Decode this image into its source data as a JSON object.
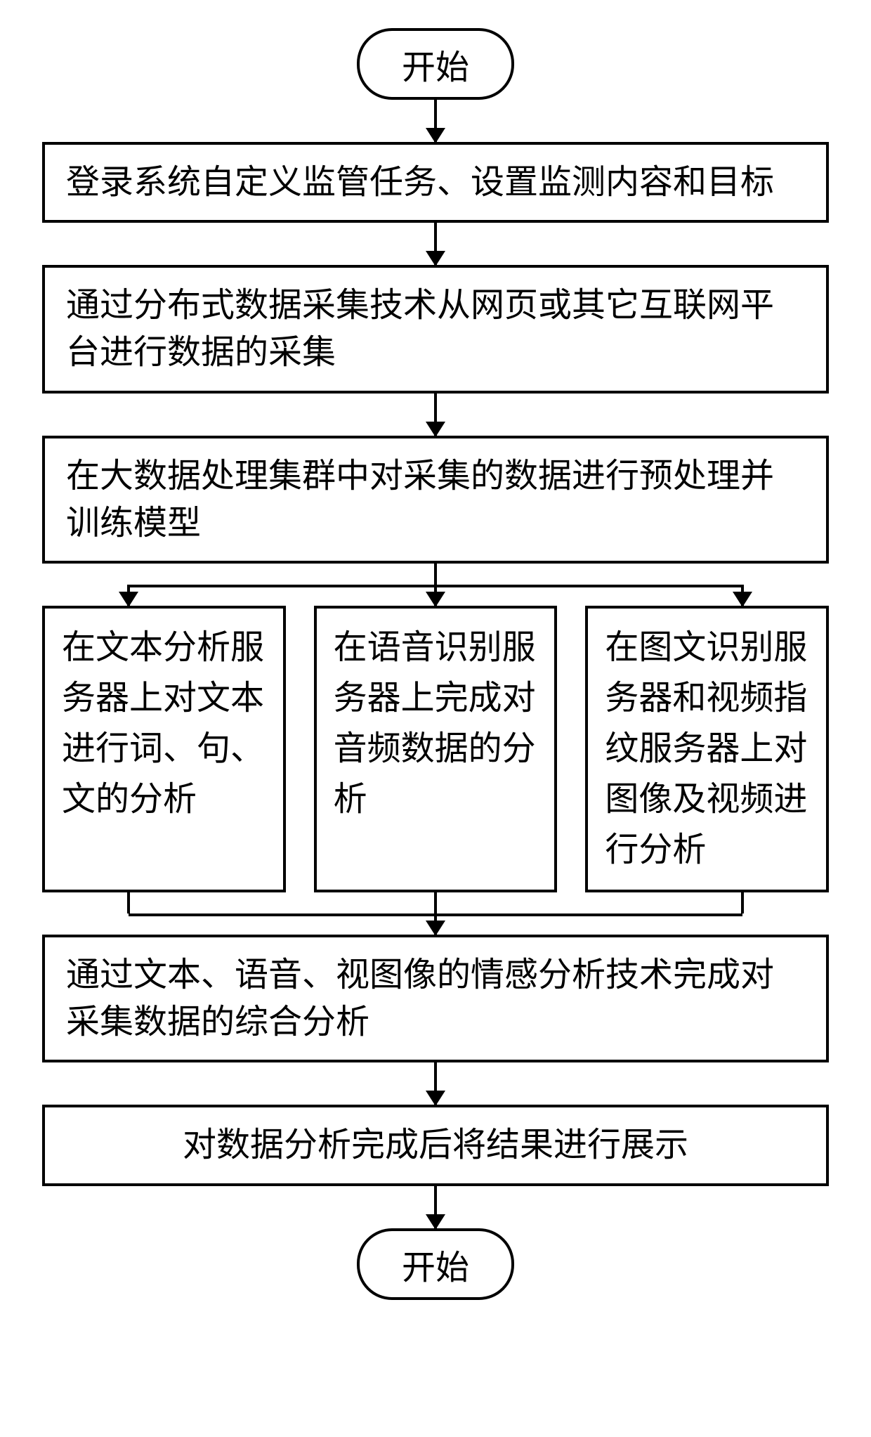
{
  "flowchart": {
    "type": "flowchart",
    "background_color": "#ffffff",
    "border_color": "#000000",
    "border_width": 4,
    "font_family": "SimSun",
    "font_size": 48,
    "text_color": "#000000",
    "arrow_color": "#000000",
    "terminal_radius": 50,
    "nodes": {
      "start": {
        "type": "terminal",
        "label": "开始"
      },
      "step1": {
        "type": "process",
        "label": "登录系统自定义监管任务、设置监测内容和目标"
      },
      "step2": {
        "type": "process",
        "label": "通过分布式数据采集技术从网页或其它互联网平台进行数据的采集"
      },
      "step3": {
        "type": "process",
        "label": "在大数据处理集群中对采集的数据进行预处理并训练模型"
      },
      "branch_left": {
        "type": "process",
        "label": "在文本分析服务器上对文本进行词、句、文的分析"
      },
      "branch_center": {
        "type": "process",
        "label": "在语音识别服务器上完成对音频数据的分析"
      },
      "branch_right": {
        "type": "process",
        "label": "在图文识别服务器和视频指纹服务器上对图像及视频进行分析"
      },
      "step5": {
        "type": "process",
        "label": "通过文本、语音、视图像的情感分析技术完成对采集数据的综合分析"
      },
      "step6": {
        "type": "process",
        "label": "对数据分析完成后将结果进行展示"
      },
      "end": {
        "type": "terminal",
        "label": "开始"
      }
    },
    "edges": [
      {
        "from": "start",
        "to": "step1"
      },
      {
        "from": "step1",
        "to": "step2"
      },
      {
        "from": "step2",
        "to": "step3"
      },
      {
        "from": "step3",
        "to": "branch_left"
      },
      {
        "from": "step3",
        "to": "branch_center"
      },
      {
        "from": "step3",
        "to": "branch_right"
      },
      {
        "from": "branch_left",
        "to": "step5"
      },
      {
        "from": "branch_center",
        "to": "step5"
      },
      {
        "from": "branch_right",
        "to": "step5"
      },
      {
        "from": "step5",
        "to": "step6"
      },
      {
        "from": "step6",
        "to": "end"
      }
    ]
  }
}
